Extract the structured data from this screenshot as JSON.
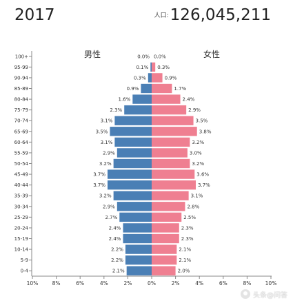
{
  "header": {
    "year": "2017",
    "population_label": "人口:",
    "population_value": "126,045,211"
  },
  "watermark": {
    "icon": "chat-bubble-icon",
    "text": "头条@问答"
  },
  "colors": {
    "male": "#4a7fb5",
    "female": "#ef7f91",
    "axis": "#888888"
  },
  "chart_data": {
    "type": "bar",
    "orientation": "horizontal-population-pyramid",
    "left_label": "男性",
    "right_label": "女性",
    "categories": [
      "100+",
      "95-99",
      "90-94",
      "85-89",
      "80-84",
      "75-79",
      "70-74",
      "65-69",
      "60-64",
      "55-59",
      "50-54",
      "45-49",
      "40-44",
      "35-39",
      "30-34",
      "25-29",
      "20-24",
      "15-19",
      "10-14",
      "5-9",
      "0-4"
    ],
    "series": [
      {
        "name": "男性",
        "values": [
          0.0,
          0.1,
          0.3,
          0.9,
          1.6,
          2.3,
          3.1,
          3.5,
          3.1,
          2.9,
          3.2,
          3.7,
          3.7,
          3.2,
          2.9,
          2.7,
          2.4,
          2.4,
          2.2,
          2.2,
          2.1
        ],
        "labels": [
          "0.0%",
          "0.1%",
          "0.3%",
          "0.9%",
          "1.6%",
          "2.3%",
          "3.1%",
          "3.5%",
          "3.1%",
          "2.9%",
          "3.2%",
          "3.7%",
          "3.7%",
          "3.2%",
          "2.9%",
          "2.7%",
          "2.4%",
          "2.4%",
          "2.2%",
          "2.2%",
          "2.1%"
        ]
      },
      {
        "name": "女性",
        "values": [
          0.0,
          0.3,
          0.9,
          1.7,
          2.4,
          2.9,
          3.5,
          3.8,
          3.2,
          3.0,
          3.2,
          3.6,
          3.7,
          3.1,
          2.8,
          2.5,
          2.3,
          2.3,
          2.1,
          2.1,
          2.0
        ],
        "labels": [
          "0.0%",
          "0.3%",
          "0.9%",
          "1.7%",
          "2.4%",
          "2.9%",
          "3.5%",
          "3.8%",
          "3.2%",
          "3.0%",
          "3.2%",
          "3.6%",
          "3.7%",
          "3.1%",
          "2.8%",
          "2.5%",
          "2.3%",
          "2.3%",
          "2.1%",
          "2.1%",
          "2.0%"
        ]
      }
    ],
    "x_ticks": [
      "10%",
      "8%",
      "6%",
      "4%",
      "2%",
      "0%",
      "2%",
      "4%",
      "6%",
      "8%",
      "10%"
    ],
    "xlim": [
      -10,
      10
    ],
    "grid": false,
    "legend": "none"
  }
}
